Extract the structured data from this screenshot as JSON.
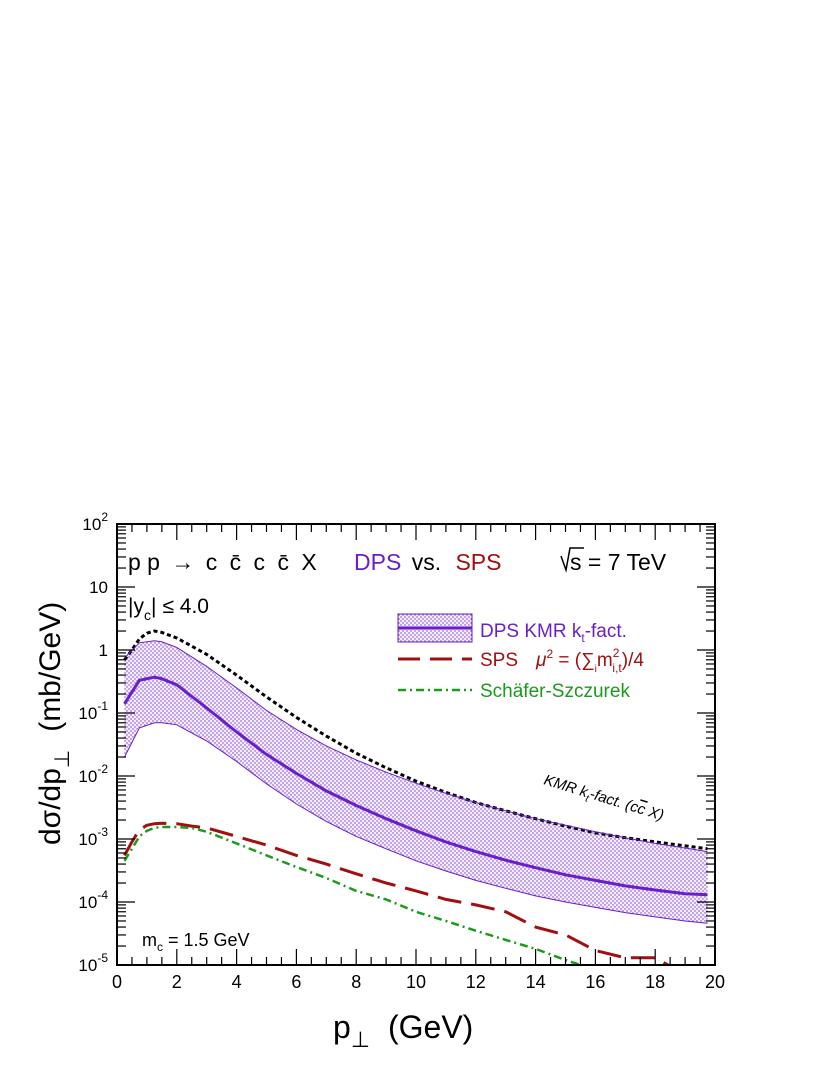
{
  "chart_data": {
    "type": "line",
    "process": {
      "prefix": "p p",
      "arrow": "→",
      "products": [
        "c",
        "c̄",
        "c",
        "c̄",
        "X"
      ],
      "dps_word": "DPS",
      "vs_word": "vs.",
      "sps_word": "SPS"
    },
    "energy_label": "s = 7 TeV",
    "rapidity_cut": {
      "var": "y",
      "sub": "c",
      "rel": "≤ 4.0"
    },
    "mass_label": {
      "main": "m",
      "sub": "c",
      "rest": " = 1.5 GeV"
    },
    "xlabel": {
      "main": "p",
      "sub": "⊥",
      "unit": "(GeV)"
    },
    "ylabel": {
      "main": "dσ/dp",
      "sub": "⊥",
      "unit": "(mb/GeV)"
    },
    "xlim": [
      0,
      20
    ],
    "ylim": [
      1e-05,
      100
    ],
    "yscale": "log",
    "x_ticks": [
      0,
      2,
      4,
      6,
      8,
      10,
      12,
      14,
      16,
      18,
      20
    ],
    "y_ticks": [
      {
        "base": "10",
        "exp": "-5",
        "value": 1e-05
      },
      {
        "base": "10",
        "exp": "-4",
        "value": 0.0001
      },
      {
        "base": "10",
        "exp": "-3",
        "value": 0.001
      },
      {
        "base": "10",
        "exp": "-2",
        "value": 0.01
      },
      {
        "base": "10",
        "exp": "-1",
        "value": 0.1
      },
      {
        "base": "1",
        "exp": "",
        "value": 1
      },
      {
        "base": "10",
        "exp": "",
        "value": 10
      },
      {
        "base": "10",
        "exp": "2",
        "value": 100
      }
    ],
    "legend": [
      {
        "id": "dps",
        "label": "DPS KMR k",
        "sub": "t",
        "rest": "-fact.",
        "color": "#6a1fc8",
        "style": "band"
      },
      {
        "id": "sps",
        "label": "SPS",
        "formula": "μ",
        "formula_sup": "2",
        "formula_rest": " = (∑",
        "sum_sub": "i",
        "m": "m",
        "m_sup": "2",
        "m_sub": "i,t",
        "tail": ")/4",
        "color": "#a01010",
        "style": "long-dash"
      },
      {
        "id": "ss",
        "label": "Schäfer-Szczurek",
        "color": "#1c9a1c",
        "style": "dash-dot"
      }
    ],
    "annotation": {
      "text": "KMR k",
      "sub": "t",
      "rest": "-fact. (c",
      "cbar": "c",
      "tail": " X)"
    },
    "series": [
      {
        "name": "KMR kt-fact. (cc̄ X)",
        "color": "#000000",
        "style": "dotted",
        "x": [
          0.25,
          0.5,
          0.75,
          1.0,
          1.25,
          1.5,
          2,
          3,
          4,
          5,
          6,
          7,
          8,
          9,
          10,
          11,
          12,
          13,
          14,
          15,
          16,
          17,
          18,
          19,
          19.75
        ],
        "y": [
          0.7,
          1.0,
          1.5,
          1.85,
          2.0,
          1.9,
          1.55,
          0.85,
          0.4,
          0.18,
          0.085,
          0.043,
          0.023,
          0.0135,
          0.0083,
          0.0055,
          0.0038,
          0.0028,
          0.0021,
          0.0016,
          0.00125,
          0.00105,
          0.0009,
          0.00078,
          0.0007
        ]
      },
      {
        "name": "DPS KMR kt-fact. (central)",
        "color": "#6a1fc8",
        "style": "solid",
        "x": [
          0.25,
          0.75,
          1.25,
          1.5,
          2,
          3,
          4,
          5,
          6,
          7,
          8,
          9,
          10,
          11,
          12,
          13,
          14,
          15,
          16,
          17,
          18,
          19,
          19.75
        ],
        "y": [
          0.14,
          0.33,
          0.37,
          0.35,
          0.28,
          0.12,
          0.05,
          0.022,
          0.011,
          0.0058,
          0.0034,
          0.0021,
          0.00135,
          0.0009,
          0.00063,
          0.00046,
          0.00035,
          0.00027,
          0.00022,
          0.00018,
          0.000155,
          0.000135,
          0.00013
        ]
      },
      {
        "name": "DPS band upper",
        "color": "#6a1fc8",
        "style": "thin",
        "x": [
          0.25,
          0.75,
          1.25,
          1.5,
          2,
          3,
          4,
          5,
          6,
          7,
          8,
          9,
          10,
          11,
          12,
          13,
          14,
          15,
          16,
          17,
          18,
          19,
          19.75
        ],
        "y": [
          0.75,
          1.3,
          1.4,
          1.35,
          1.1,
          0.55,
          0.25,
          0.11,
          0.055,
          0.03,
          0.018,
          0.0115,
          0.0077,
          0.0053,
          0.0038,
          0.0028,
          0.0021,
          0.00165,
          0.0013,
          0.00105,
          0.00085,
          0.00072,
          0.00063
        ]
      },
      {
        "name": "DPS band lower",
        "color": "#6a1fc8",
        "style": "thin",
        "x": [
          0.25,
          0.75,
          1.25,
          1.5,
          2,
          3,
          4,
          5,
          6,
          7,
          8,
          9,
          10,
          11,
          12,
          13,
          14,
          15,
          16,
          17,
          18,
          19,
          19.75
        ],
        "y": [
          0.02,
          0.058,
          0.07,
          0.07,
          0.065,
          0.036,
          0.017,
          0.0075,
          0.0036,
          0.0019,
          0.0011,
          0.0007,
          0.00045,
          0.00031,
          0.00022,
          0.000165,
          0.000125,
          0.0001,
          8.2e-05,
          6.8e-05,
          5.8e-05,
          5e-05,
          4.6e-05
        ]
      },
      {
        "name": "SPS μ² = (Σ m²i,t)/4",
        "color": "#a01010",
        "style": "long-dash",
        "x": [
          0.25,
          0.5,
          0.75,
          1.0,
          1.25,
          1.5,
          2,
          2.5,
          3,
          4,
          5,
          6,
          7,
          8,
          9,
          10,
          11,
          12,
          13,
          14,
          15,
          16,
          17,
          18,
          18.6
        ],
        "y": [
          0.00055,
          0.0009,
          0.0014,
          0.00165,
          0.00175,
          0.00178,
          0.00175,
          0.0016,
          0.0015,
          0.0011,
          0.0008,
          0.00055,
          0.0004,
          0.00028,
          0.0002,
          0.00015,
          0.00011,
          9e-05,
          7e-05,
          4e-05,
          3e-05,
          1.7e-05,
          1.3e-05,
          1.3e-05,
          9e-06
        ]
      },
      {
        "name": "Schäfer-Szczurek",
        "color": "#1c9a1c",
        "style": "dash-dot",
        "x": [
          0.25,
          0.5,
          0.75,
          1.0,
          1.25,
          1.5,
          2,
          2.5,
          3,
          4,
          5,
          6,
          7,
          8,
          9,
          10,
          11,
          12,
          13,
          14,
          15,
          15.5
        ],
        "y": [
          0.00045,
          0.0007,
          0.0011,
          0.00135,
          0.0015,
          0.00155,
          0.00155,
          0.0015,
          0.0013,
          0.00085,
          0.00055,
          0.00036,
          0.00024,
          0.00015,
          0.00011,
          7e-05,
          5e-05,
          3.5e-05,
          2.5e-05,
          1.8e-05,
          1.2e-05,
          1e-05
        ]
      }
    ]
  }
}
